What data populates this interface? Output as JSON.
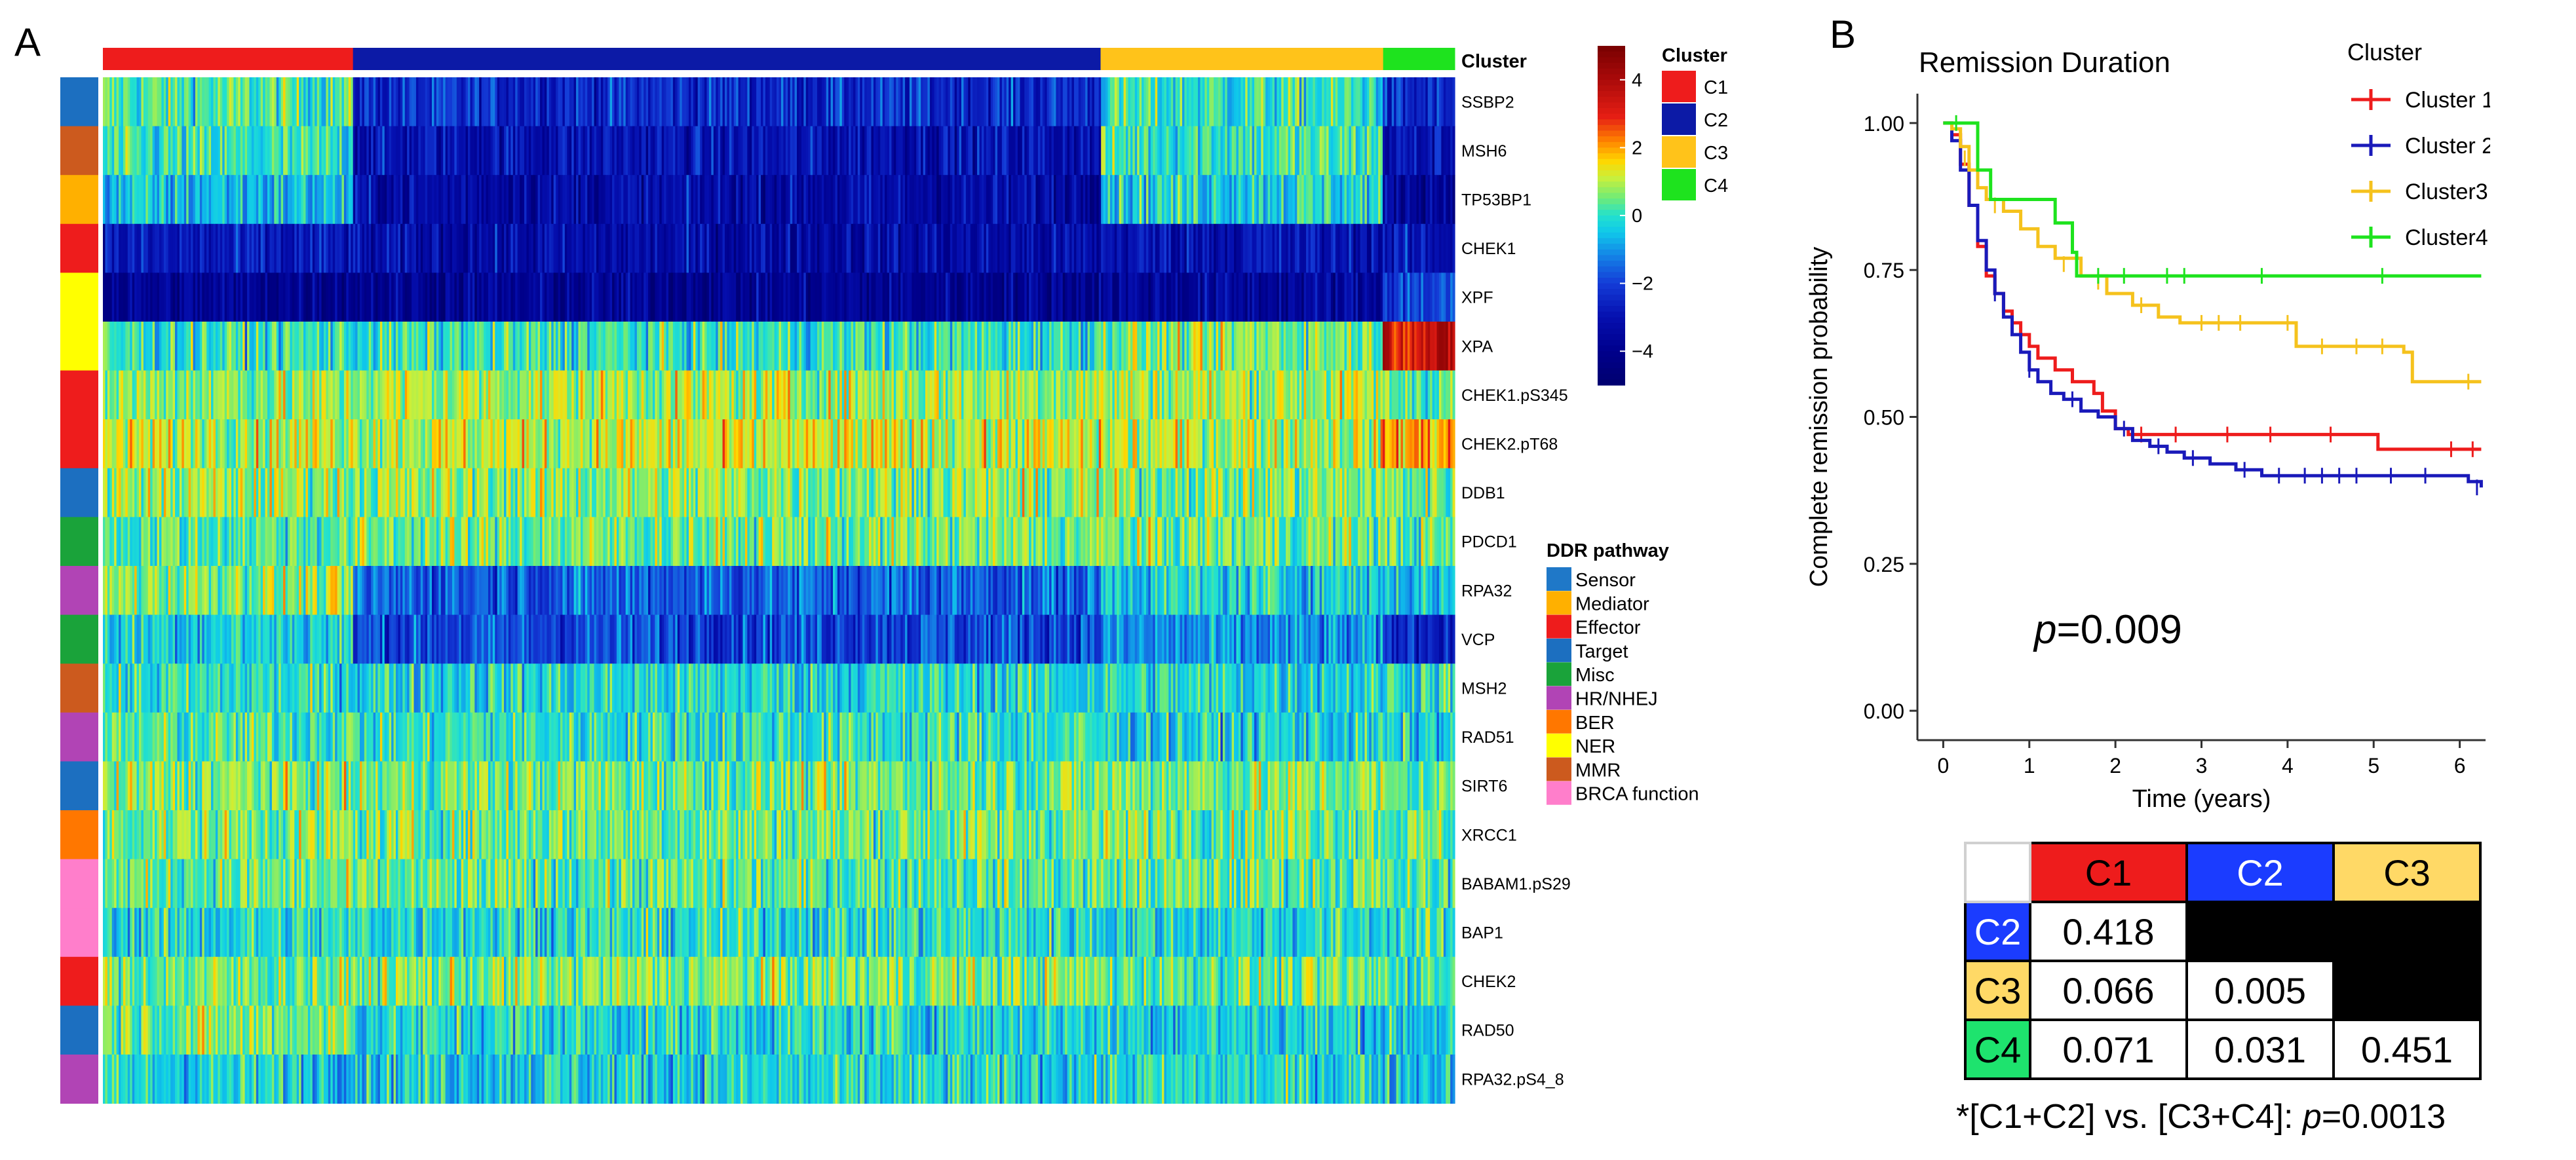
{
  "panel_a_letter": "A",
  "panel_b_letter": "B",
  "chart_data": [
    {
      "type": "heatmap",
      "cluster_bar_label": "Cluster",
      "clusters": [
        {
          "name": "C1",
          "color": "#ee1c1c",
          "fraction": 0.185
        },
        {
          "name": "C2",
          "color": "#0c1aa6",
          "fraction": 0.553
        },
        {
          "name": "C3",
          "color": "#ffc31a",
          "fraction": 0.209
        },
        {
          "name": "C4",
          "color": "#1ee31e",
          "fraction": 0.053
        }
      ],
      "rows": [
        {
          "gene": "SSBP2",
          "pathway": "Target",
          "means": [
            0.2,
            -2.4,
            0.0,
            -2.6
          ]
        },
        {
          "gene": "MSH6",
          "pathway": "MMR",
          "means": [
            -0.1,
            -3.0,
            0.1,
            -3.0
          ]
        },
        {
          "gene": "TP53BP1",
          "pathway": "Mediator",
          "means": [
            -0.6,
            -3.3,
            -0.2,
            -3.5
          ]
        },
        {
          "gene": "CHEK1",
          "pathway": "Effector",
          "means": [
            -2.9,
            -3.3,
            -3.0,
            -3.0
          ]
        },
        {
          "gene": "XPF",
          "pathway": "NER",
          "means": [
            -3.8,
            -3.8,
            -3.6,
            -1.9
          ]
        },
        {
          "gene": "XPA",
          "pathway": "NER",
          "means": [
            0.0,
            0.0,
            0.6,
            3.5
          ]
        },
        {
          "gene": "CHEK1.pS345",
          "pathway": "Effector",
          "means": [
            0.7,
            0.9,
            0.9,
            0.4
          ]
        },
        {
          "gene": "CHEK2.pT68",
          "pathway": "Effector",
          "means": [
            1.1,
            1.1,
            1.0,
            2.0
          ]
        },
        {
          "gene": "DDB1",
          "pathway": "Target",
          "means": [
            0.8,
            0.7,
            0.6,
            0.5
          ]
        },
        {
          "gene": "PDCD1",
          "pathway": "Misc",
          "means": [
            0.3,
            0.5,
            0.5,
            0.3
          ]
        },
        {
          "gene": "RPA32",
          "pathway": "HR/NHEJ",
          "means": [
            0.7,
            -1.6,
            -0.3,
            -0.5
          ]
        },
        {
          "gene": "VCP",
          "pathway": "Misc",
          "means": [
            -0.3,
            -1.9,
            -1.2,
            -2.4
          ]
        },
        {
          "gene": "MSH2",
          "pathway": "MMR",
          "means": [
            -0.1,
            -0.2,
            -0.2,
            0.0
          ]
        },
        {
          "gene": "RAD51",
          "pathway": "HR/NHEJ",
          "means": [
            0.2,
            0.0,
            -0.3,
            -0.4
          ]
        },
        {
          "gene": "SIRT6",
          "pathway": "Target",
          "means": [
            0.6,
            0.5,
            0.6,
            0.3
          ]
        },
        {
          "gene": "XRCC1",
          "pathway": "BER",
          "means": [
            0.6,
            0.5,
            0.6,
            0.4
          ]
        },
        {
          "gene": "BABAM1.pS29",
          "pathway": "BRCA function",
          "means": [
            0.4,
            0.3,
            0.4,
            0.1
          ]
        },
        {
          "gene": "BAP1",
          "pathway": "BRCA function",
          "means": [
            -0.2,
            -0.1,
            -0.2,
            0.0
          ]
        },
        {
          "gene": "CHEK2",
          "pathway": "Effector",
          "means": [
            0.5,
            0.6,
            0.4,
            0.2
          ]
        },
        {
          "gene": "RAD50",
          "pathway": "Target",
          "means": [
            0.6,
            -0.2,
            -0.3,
            -0.4
          ]
        },
        {
          "gene": "RPA32.pS4_8",
          "pathway": "HR/NHEJ",
          "means": [
            -0.3,
            -0.3,
            -0.2,
            -0.4
          ]
        }
      ],
      "colorbar": {
        "min": -5,
        "max": 5,
        "ticks": [
          4,
          2,
          0,
          -2,
          -4
        ],
        "tick_labels": [
          "4",
          "2",
          "0",
          "−2",
          "−4"
        ]
      },
      "cluster_legend": {
        "title": "Cluster",
        "items": [
          {
            "label": "C1",
            "color": "#ee1c1c"
          },
          {
            "label": "C2",
            "color": "#0c1aa6"
          },
          {
            "label": "C3",
            "color": "#ffc31a"
          },
          {
            "label": "C4",
            "color": "#1ee31e"
          }
        ]
      },
      "pathway_legend": {
        "title": "DDR pathway",
        "items": [
          {
            "label": "Sensor",
            "color": "#1f78c8"
          },
          {
            "label": "Mediator",
            "color": "#ffb000"
          },
          {
            "label": "Effector",
            "color": "#ee1c1c"
          },
          {
            "label": "Target",
            "color": "#1c6fc0"
          },
          {
            "label": "Misc",
            "color": "#1aa33a"
          },
          {
            "label": "HR/NHEJ",
            "color": "#b144b5"
          },
          {
            "label": "BER",
            "color": "#ff7700"
          },
          {
            "label": "NER",
            "color": "#ffff00"
          },
          {
            "label": "MMR",
            "color": "#cc5a1e"
          },
          {
            "label": "BRCA function",
            "color": "#ff7ecb"
          }
        ]
      }
    },
    {
      "type": "line",
      "title": "Remission Duration",
      "xlabel": "Time (years)",
      "ylabel": "Complete remission probability",
      "xlim": [
        -0.3,
        6.3
      ],
      "ylim": [
        -0.05,
        1.05
      ],
      "xticks": [
        0,
        1,
        2,
        3,
        4,
        5,
        6
      ],
      "xtick_labels": [
        "0",
        "1",
        "2",
        "3",
        "4",
        "5",
        "6"
      ],
      "yticks": [
        0.0,
        0.25,
        0.5,
        0.75,
        1.0
      ],
      "ytick_labels": [
        "0.00",
        "0.25",
        "0.50",
        "0.75",
        "1.00"
      ],
      "legend_title": "Cluster",
      "legend_position": "top-right",
      "annotation": {
        "italic": "p",
        "rest": "=0.009"
      },
      "series": [
        {
          "name": "Cluster 1",
          "color": "#ee1c1c",
          "points": [
            [
              0,
              1.0
            ],
            [
              0.1,
              0.98
            ],
            [
              0.2,
              0.93
            ],
            [
              0.3,
              0.86
            ],
            [
              0.4,
              0.79
            ],
            [
              0.5,
              0.74
            ],
            [
              0.6,
              0.71
            ],
            [
              0.7,
              0.68
            ],
            [
              0.8,
              0.66
            ],
            [
              0.9,
              0.64
            ],
            [
              1.0,
              0.62
            ],
            [
              1.1,
              0.6
            ],
            [
              1.3,
              0.58
            ],
            [
              1.5,
              0.56
            ],
            [
              1.75,
              0.54
            ],
            [
              1.85,
              0.51
            ],
            [
              2.0,
              0.48
            ],
            [
              2.15,
              0.47
            ],
            [
              3.0,
              0.47
            ],
            [
              4.1,
              0.47
            ],
            [
              5.05,
              0.445
            ],
            [
              6.25,
              0.445
            ]
          ],
          "censored": [
            [
              2.3,
              0.47
            ],
            [
              2.7,
              0.47
            ],
            [
              3.3,
              0.47
            ],
            [
              3.8,
              0.47
            ],
            [
              4.5,
              0.47
            ],
            [
              5.9,
              0.445
            ],
            [
              6.15,
              0.445
            ]
          ]
        },
        {
          "name": "Cluster 2",
          "color": "#1a1aba",
          "points": [
            [
              0,
              1.0
            ],
            [
              0.1,
              0.97
            ],
            [
              0.2,
              0.92
            ],
            [
              0.3,
              0.86
            ],
            [
              0.4,
              0.8
            ],
            [
              0.5,
              0.75
            ],
            [
              0.6,
              0.71
            ],
            [
              0.7,
              0.67
            ],
            [
              0.8,
              0.64
            ],
            [
              0.9,
              0.61
            ],
            [
              1.0,
              0.58
            ],
            [
              1.1,
              0.56
            ],
            [
              1.25,
              0.54
            ],
            [
              1.4,
              0.53
            ],
            [
              1.6,
              0.51
            ],
            [
              1.8,
              0.5
            ],
            [
              2.0,
              0.48
            ],
            [
              2.2,
              0.46
            ],
            [
              2.4,
              0.45
            ],
            [
              2.6,
              0.44
            ],
            [
              2.8,
              0.43
            ],
            [
              3.1,
              0.42
            ],
            [
              3.4,
              0.41
            ],
            [
              3.7,
              0.4
            ],
            [
              5.0,
              0.4
            ],
            [
              6.1,
              0.39
            ],
            [
              6.25,
              0.38
            ]
          ],
          "censored": [
            [
              0.6,
              0.71
            ],
            [
              1.0,
              0.58
            ],
            [
              1.5,
              0.53
            ],
            [
              2.1,
              0.48
            ],
            [
              2.5,
              0.45
            ],
            [
              2.9,
              0.43
            ],
            [
              3.5,
              0.41
            ],
            [
              3.9,
              0.4
            ],
            [
              4.2,
              0.4
            ],
            [
              4.4,
              0.4
            ],
            [
              4.6,
              0.4
            ],
            [
              4.8,
              0.4
            ],
            [
              5.2,
              0.4
            ],
            [
              5.6,
              0.4
            ],
            [
              6.2,
              0.38
            ]
          ]
        },
        {
          "name": "Cluster3",
          "color": "#f5c21d",
          "points": [
            [
              0,
              1.0
            ],
            [
              0.1,
              0.99
            ],
            [
              0.2,
              0.96
            ],
            [
              0.3,
              0.92
            ],
            [
              0.4,
              0.89
            ],
            [
              0.5,
              0.87
            ],
            [
              0.7,
              0.85
            ],
            [
              0.9,
              0.82
            ],
            [
              1.1,
              0.79
            ],
            [
              1.3,
              0.77
            ],
            [
              1.6,
              0.74
            ],
            [
              1.9,
              0.71
            ],
            [
              2.2,
              0.69
            ],
            [
              2.5,
              0.67
            ],
            [
              2.75,
              0.66
            ],
            [
              4.05,
              0.66
            ],
            [
              4.1,
              0.62
            ],
            [
              5.35,
              0.61
            ],
            [
              5.45,
              0.56
            ],
            [
              6.25,
              0.56
            ]
          ],
          "censored": [
            [
              0.25,
              0.94
            ],
            [
              0.6,
              0.86
            ],
            [
              1.4,
              0.76
            ],
            [
              1.8,
              0.73
            ],
            [
              2.3,
              0.69
            ],
            [
              3.0,
              0.66
            ],
            [
              3.2,
              0.66
            ],
            [
              3.45,
              0.66
            ],
            [
              4.0,
              0.66
            ],
            [
              4.4,
              0.62
            ],
            [
              4.8,
              0.62
            ],
            [
              5.1,
              0.62
            ],
            [
              6.1,
              0.56
            ]
          ]
        },
        {
          "name": "Cluster4",
          "color": "#1ee31e",
          "points": [
            [
              0,
              1.0
            ],
            [
              0.3,
              1.0
            ],
            [
              0.4,
              0.92
            ],
            [
              0.55,
              0.87
            ],
            [
              1.25,
              0.87
            ],
            [
              1.3,
              0.83
            ],
            [
              1.5,
              0.78
            ],
            [
              1.55,
              0.74
            ],
            [
              6.25,
              0.74
            ]
          ],
          "censored": [
            [
              0.15,
              1.0
            ],
            [
              1.8,
              0.74
            ],
            [
              2.1,
              0.74
            ],
            [
              2.6,
              0.74
            ],
            [
              2.8,
              0.74
            ],
            [
              3.7,
              0.74
            ],
            [
              5.1,
              0.74
            ]
          ]
        }
      ]
    },
    {
      "type": "table",
      "col_headers": [
        {
          "label": "C1",
          "color": "#ee1c1c"
        },
        {
          "label": "C2",
          "color": "#1b3cff"
        },
        {
          "label": "C3",
          "color": "#ffd966"
        }
      ],
      "row_headers": [
        {
          "label": "C2",
          "color": "#1b3cff"
        },
        {
          "label": "C3",
          "color": "#ffd966"
        },
        {
          "label": "C4",
          "color": "#1ee36e"
        }
      ],
      "cells": [
        [
          "0.418",
          null,
          null
        ],
        [
          "0.066",
          "0.005",
          null
        ],
        [
          "0.071",
          "0.031",
          "0.451"
        ]
      ],
      "footnote": {
        "prefix": "*[C1+C2] vs. [C3+C4]: ",
        "italic": "p",
        "rest": "=0.0013"
      }
    }
  ]
}
